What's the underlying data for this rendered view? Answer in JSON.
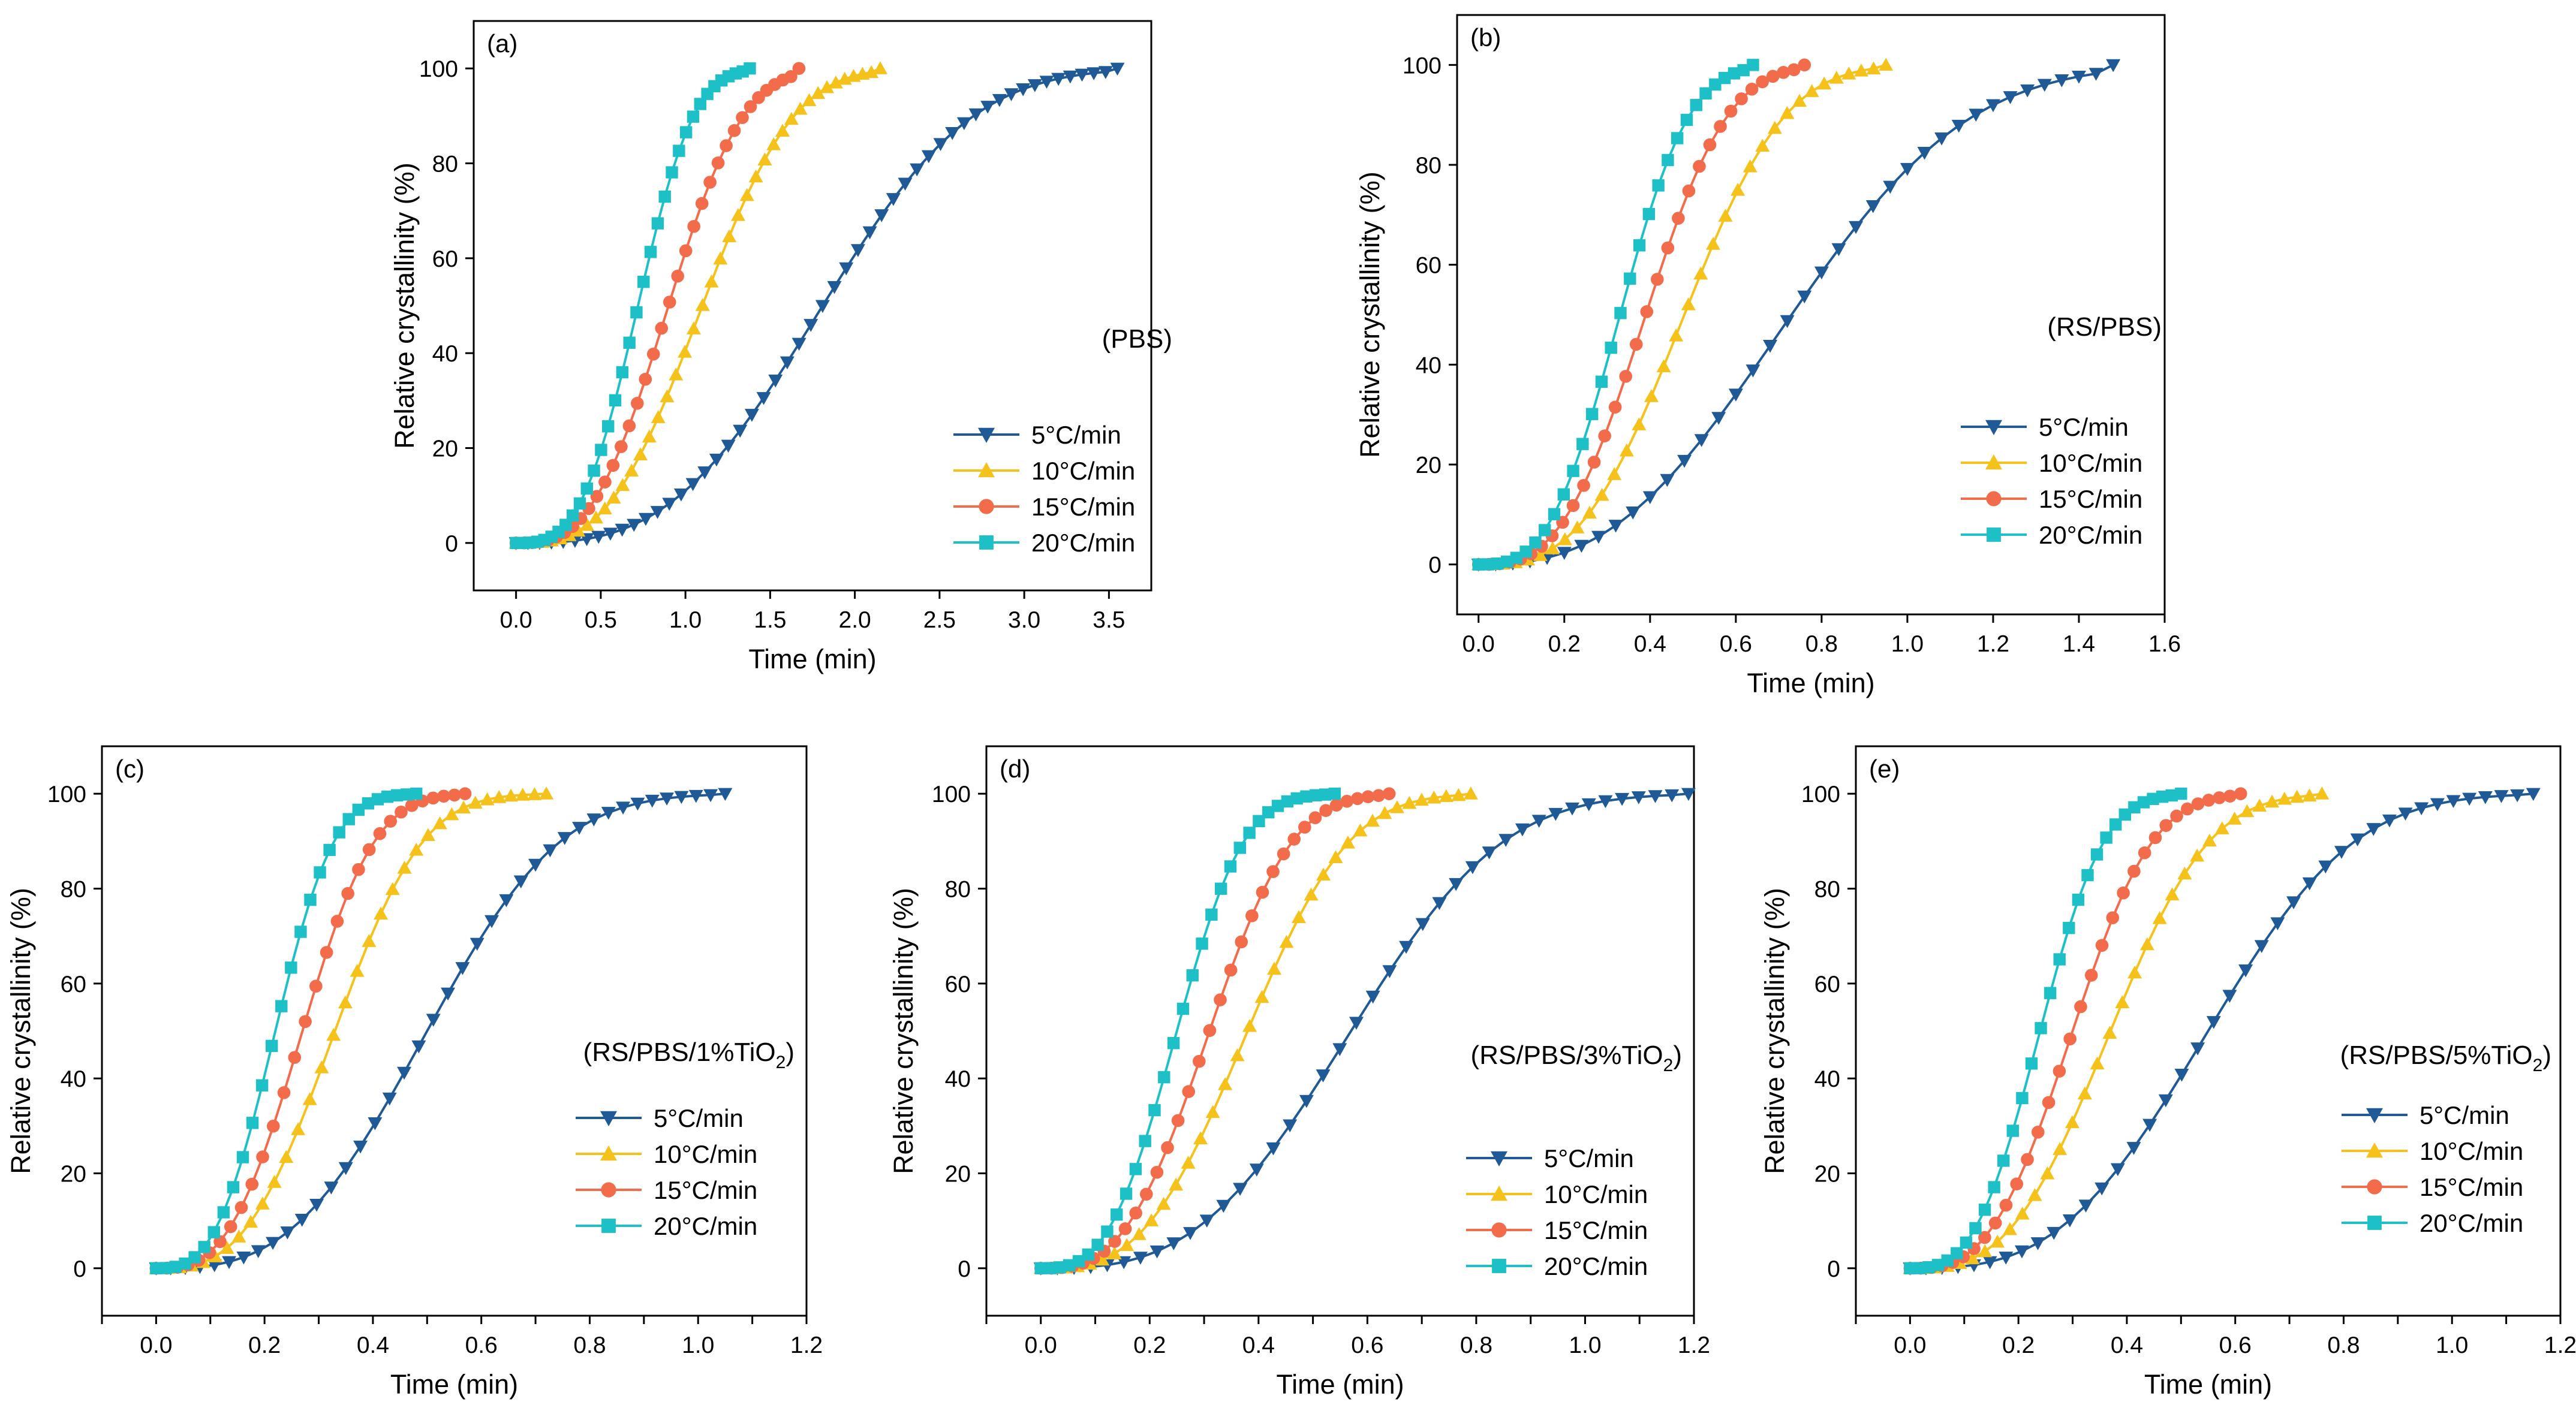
{
  "chart_data": [
    {
      "type": "line",
      "panel": "(a)",
      "sample_label": "(PBS)",
      "xlabel": "Time (min)",
      "ylabel": "Relative crystallinity (%)",
      "xlim": [
        -0.25,
        3.75
      ],
      "ylim": [
        -10,
        110
      ],
      "xticks": [
        0.0,
        0.5,
        1.0,
        1.5,
        2.0,
        2.5,
        3.0,
        3.5
      ],
      "yticks": [
        0,
        20,
        40,
        60,
        80,
        100
      ],
      "legend": [
        "5°C/min",
        "10°C/min",
        "15°C/min",
        "20°C/min"
      ],
      "series": [
        {
          "name": "5°C/min",
          "t_end": 3.55,
          "half_time": 1.81,
          "n": 3.0,
          "points": 52
        },
        {
          "name": "10°C/min",
          "t_end": 2.15,
          "half_time": 1.1,
          "n": 3.0,
          "points": 42
        },
        {
          "name": "15°C/min",
          "t_end": 1.67,
          "half_time": 0.9,
          "n": 3.0,
          "points": 36
        },
        {
          "name": "20°C/min",
          "t_end": 1.38,
          "half_time": 0.72,
          "n": 3.2,
          "points": 34
        }
      ]
    },
    {
      "type": "line",
      "panel": "(b)",
      "sample_label": "(RS/PBS)",
      "xlabel": "Time (min)",
      "ylabel": "Relative crystallinity (%)",
      "xlim": [
        -0.05,
        1.6
      ],
      "ylim": [
        -10,
        110
      ],
      "xticks": [
        0.0,
        0.2,
        0.4,
        0.6,
        0.8,
        1.0,
        1.2,
        1.4,
        1.6
      ],
      "yticks": [
        0,
        20,
        40,
        60,
        80,
        100
      ],
      "legend": [
        "5°C/min",
        "10°C/min",
        "15°C/min",
        "20°C/min"
      ],
      "series": [
        {
          "name": "5°C/min",
          "t_end": 1.48,
          "half_time": 0.73,
          "n": 2.6,
          "points": 38
        },
        {
          "name": "10°C/min",
          "t_end": 0.95,
          "half_time": 0.48,
          "n": 3.0,
          "points": 34
        },
        {
          "name": "15°C/min",
          "t_end": 0.76,
          "half_time": 0.39,
          "n": 3.0,
          "points": 32
        },
        {
          "name": "20°C/min",
          "t_end": 0.64,
          "half_time": 0.33,
          "n": 3.0,
          "points": 30
        }
      ]
    },
    {
      "type": "line",
      "panel": "(c)",
      "sample_label": "(RS/PBS/1%TiO",
      "sample_label_sub": "2",
      "sample_label_end": ")",
      "xlabel": "Time (min)",
      "ylabel": "Relative crystallinity (%)",
      "xlim": [
        -0.1,
        1.2
      ],
      "ylim": [
        -10,
        110
      ],
      "xticks": [
        -0.1,
        0.0,
        0.1,
        0.2,
        0.3,
        0.4,
        0.5,
        0.6,
        0.7,
        0.8,
        0.9,
        1.0,
        1.1,
        1.2
      ],
      "xticklabels": [
        "",
        "0.0",
        "",
        "0.2",
        "",
        "0.4",
        "",
        "0.6",
        "",
        "0.8",
        "",
        "1.0",
        "",
        "1.2"
      ],
      "yticks": [
        0,
        20,
        40,
        60,
        80,
        100
      ],
      "legend": [
        "5°C/min",
        "10°C/min",
        "15°C/min",
        "20°C/min"
      ],
      "series": [
        {
          "name": "5°C/min",
          "t_end": 1.05,
          "half_time": 0.5,
          "n": 3.0,
          "points": 40
        },
        {
          "name": "10°C/min",
          "t_end": 0.72,
          "half_time": 0.33,
          "n": 3.0,
          "points": 34
        },
        {
          "name": "15°C/min",
          "t_end": 0.57,
          "half_time": 0.27,
          "n": 3.0,
          "points": 30
        },
        {
          "name": "20°C/min",
          "t_end": 0.48,
          "half_time": 0.22,
          "n": 3.0,
          "points": 28
        }
      ]
    },
    {
      "type": "line",
      "panel": "(d)",
      "sample_label": "(RS/PBS/3%TiO",
      "sample_label_sub": "2",
      "sample_label_end": ")",
      "xlabel": "Time (min)",
      "ylabel": "Relative crystallinity (%)",
      "xlim": [
        -0.1,
        1.2
      ],
      "ylim": [
        -10,
        110
      ],
      "xticks": [
        -0.1,
        0.0,
        0.1,
        0.2,
        0.3,
        0.4,
        0.5,
        0.6,
        0.7,
        0.8,
        0.9,
        1.0,
        1.1,
        1.2
      ],
      "xticklabels": [
        "",
        "0.0",
        "",
        "0.2",
        "",
        "0.4",
        "",
        "0.6",
        "",
        "0.8",
        "",
        "1.0",
        "",
        "1.2"
      ],
      "yticks": [
        0,
        20,
        40,
        60,
        80,
        100
      ],
      "legend": [
        "5°C/min",
        "10°C/min",
        "15°C/min",
        "20°C/min"
      ],
      "series": [
        {
          "name": "5°C/min",
          "t_end": 1.19,
          "half_time": 0.57,
          "n": 3.0,
          "points": 40
        },
        {
          "name": "10°C/min",
          "t_end": 0.79,
          "half_time": 0.38,
          "n": 3.0,
          "points": 36
        },
        {
          "name": "15°C/min",
          "t_end": 0.64,
          "half_time": 0.31,
          "n": 3.0,
          "points": 34
        },
        {
          "name": "20°C/min",
          "t_end": 0.54,
          "half_time": 0.25,
          "n": 3.0,
          "points": 32
        }
      ]
    },
    {
      "type": "line",
      "panel": "(e)",
      "sample_label": "(RS/PBS/5%TiO",
      "sample_label_sub": "2",
      "sample_label_end": ")",
      "xlabel": "Time (min)",
      "ylabel": "Relative crystallinity (%)",
      "xlim": [
        -0.1,
        1.2
      ],
      "ylim": [
        -10,
        110
      ],
      "xticks": [
        -0.1,
        0.0,
        0.1,
        0.2,
        0.3,
        0.4,
        0.5,
        0.6,
        0.7,
        0.8,
        0.9,
        1.0,
        1.1,
        1.2
      ],
      "xticklabels": [
        "",
        "0.0",
        "",
        "0.2",
        "",
        "0.4",
        "",
        "0.6",
        "",
        "0.8",
        "",
        "1.0",
        "",
        "1.2"
      ],
      "yticks": [
        0,
        20,
        40,
        60,
        80,
        100
      ],
      "legend": [
        "5°C/min",
        "10°C/min",
        "15°C/min",
        "20°C/min"
      ],
      "series": [
        {
          "name": "5°C/min",
          "t_end": 1.15,
          "half_time": 0.55,
          "n": 3.0,
          "points": 40
        },
        {
          "name": "10°C/min",
          "t_end": 0.76,
          "half_time": 0.37,
          "n": 3.0,
          "points": 34
        },
        {
          "name": "15°C/min",
          "t_end": 0.61,
          "half_time": 0.3,
          "n": 3.0,
          "points": 32
        },
        {
          "name": "20°C/min",
          "t_end": 0.5,
          "half_time": 0.24,
          "n": 3.0,
          "points": 30
        }
      ]
    }
  ],
  "series_style": {
    "colors": [
      "#1f5a96",
      "#f5c21b",
      "#f26b4b",
      "#1ec0c8"
    ],
    "markers": [
      "triangle-down",
      "triangle-up",
      "circle",
      "square"
    ]
  }
}
